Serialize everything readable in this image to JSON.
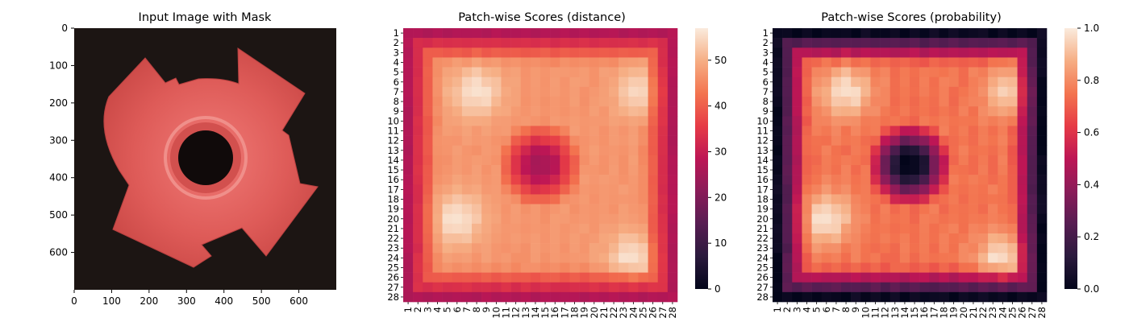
{
  "colors": {
    "background": "#ffffff",
    "image_bg": "#1c1513",
    "part_fill": "#de5b58"
  },
  "chart_data": [
    {
      "type": "image",
      "title": "Input Image with Mask",
      "xlim": [
        0,
        700
      ],
      "ylim": [
        700,
        0
      ],
      "x_ticks": [
        "0",
        "100",
        "200",
        "300",
        "400",
        "500",
        "600"
      ],
      "y_ticks": [
        "0",
        "100",
        "200",
        "300",
        "400",
        "500",
        "600"
      ]
    },
    {
      "type": "heatmap",
      "title": "Patch-wise Scores (distance)",
      "rows": 28,
      "cols": 28,
      "x_ticks": [
        "1",
        "2",
        "3",
        "4",
        "5",
        "6",
        "7",
        "8",
        "9",
        "10",
        "11",
        "12",
        "13",
        "14",
        "15",
        "16",
        "17",
        "18",
        "19",
        "20",
        "21",
        "22",
        "23",
        "24",
        "25",
        "26",
        "27",
        "28"
      ],
      "y_ticks": [
        "1",
        "2",
        "3",
        "4",
        "5",
        "6",
        "7",
        "8",
        "9",
        "10",
        "11",
        "12",
        "13",
        "14",
        "15",
        "16",
        "17",
        "18",
        "19",
        "20",
        "21",
        "22",
        "23",
        "24",
        "25",
        "26",
        "27",
        "28"
      ],
      "colorbar": {
        "min": 0,
        "max": 57,
        "ticks": [
          "0",
          "10",
          "20",
          "30",
          "40",
          "50"
        ],
        "tick_values": [
          0,
          10,
          20,
          30,
          40,
          50
        ]
      },
      "pattern": {
        "border": 27,
        "plate": 47,
        "hole_center": 26,
        "peak": 56
      }
    },
    {
      "type": "heatmap",
      "title": "Patch-wise Scores (probability)",
      "rows": 28,
      "cols": 28,
      "x_ticks": [
        "1",
        "2",
        "3",
        "4",
        "5",
        "6",
        "7",
        "8",
        "9",
        "10",
        "11",
        "12",
        "13",
        "14",
        "15",
        "16",
        "17",
        "18",
        "19",
        "20",
        "21",
        "22",
        "23",
        "24",
        "25",
        "26",
        "27",
        "28"
      ],
      "y_ticks": [
        "1",
        "2",
        "3",
        "4",
        "5",
        "6",
        "7",
        "8",
        "9",
        "10",
        "11",
        "12",
        "13",
        "14",
        "15",
        "16",
        "17",
        "18",
        "19",
        "20",
        "21",
        "22",
        "23",
        "24",
        "25",
        "26",
        "27",
        "28"
      ],
      "colorbar": {
        "min": 0.0,
        "max": 1.0,
        "ticks": [
          "0.0",
          "0.2",
          "0.4",
          "0.6",
          "0.8",
          "1.0"
        ],
        "tick_values": [
          0.0,
          0.2,
          0.4,
          0.6,
          0.8,
          1.0
        ]
      },
      "pattern": {
        "border": 0.02,
        "plate": 0.75,
        "hole_center": 0.02,
        "peak": 0.98
      }
    }
  ]
}
